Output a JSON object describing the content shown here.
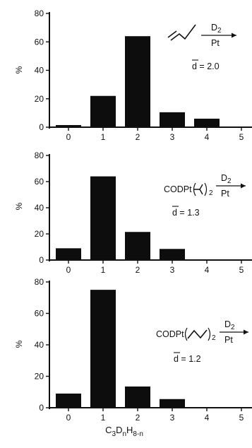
{
  "chart_data": [
    {
      "type": "bar",
      "categories": [
        "0",
        "1",
        "2",
        "3",
        "4",
        "5"
      ],
      "values": [
        1.5,
        22,
        64,
        10.5,
        6,
        0
      ],
      "ylabel": "%",
      "ylim": [
        0,
        80
      ],
      "yticks": [
        "0",
        "20",
        "40",
        "60",
        "80"
      ],
      "grid": false,
      "annotation": {
        "reagent": "D",
        "reagent_sub": "2",
        "catalyst": "Pt",
        "mean_label": "d = 2.0"
      }
    },
    {
      "type": "bar",
      "categories": [
        "0",
        "1",
        "2",
        "3",
        "4",
        "5"
      ],
      "values": [
        9,
        64,
        21.5,
        8.5,
        0,
        0
      ],
      "ylabel": "%",
      "ylim": [
        0,
        80
      ],
      "yticks": [
        "0",
        "20",
        "40",
        "60",
        "80"
      ],
      "grid": false,
      "annotation": {
        "complex_prefix": "CODPt",
        "complex_suffix_sub": "2",
        "reagent": "D",
        "reagent_sub": "2",
        "catalyst": "Pt",
        "mean_label": "d = 1.3"
      }
    },
    {
      "type": "bar",
      "categories": [
        "0",
        "1",
        "2",
        "3",
        "4",
        "5"
      ],
      "values": [
        9,
        75,
        13.5,
        5.5,
        0,
        0
      ],
      "ylabel": "%",
      "ylim": [
        0,
        80
      ],
      "yticks": [
        "0",
        "20",
        "40",
        "60",
        "80"
      ],
      "grid": false,
      "xlabel": {
        "base": "C",
        "s1": "3",
        "mid": "D",
        "s2": "n",
        "mid2": "H",
        "s3": "8-n"
      },
      "annotation": {
        "complex_prefix": "CODPt",
        "complex_suffix_sub": "2",
        "reagent": "D",
        "reagent_sub": "2",
        "catalyst": "Pt",
        "mean_label": "d = 1.2"
      }
    }
  ]
}
